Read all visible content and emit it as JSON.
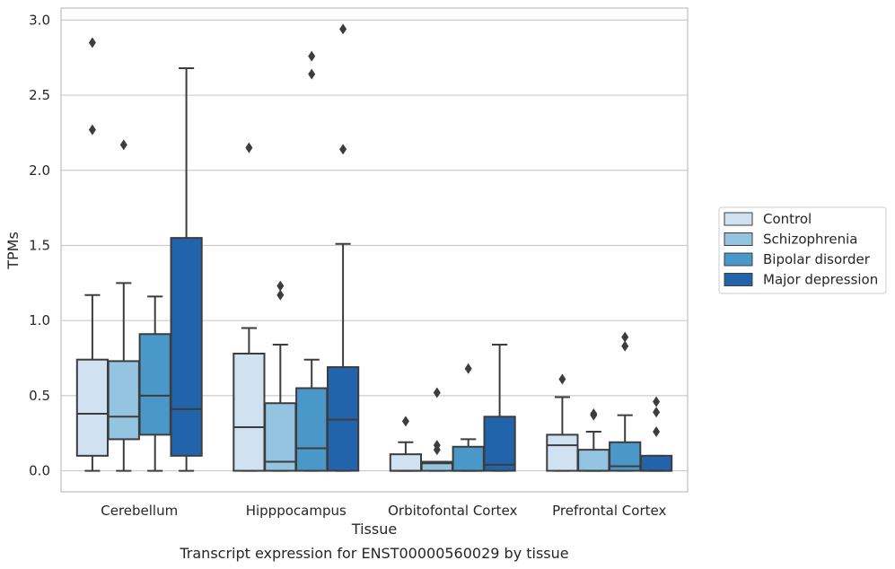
{
  "chart_data": {
    "type": "box",
    "title": "",
    "xlabel": "Tissue",
    "ylabel": "TPMs",
    "caption": "Transcript expression for ENST00000560029 by tissue",
    "ylim": [
      -0.14,
      3.08
    ],
    "yticks": [
      0.0,
      0.5,
      1.0,
      1.5,
      2.0,
      2.5,
      3.0
    ],
    "ytick_labels": [
      "0.0",
      "0.5",
      "1.0",
      "1.5",
      "2.0",
      "2.5",
      "3.0"
    ],
    "grid": "horizontal",
    "legend_position": "right",
    "categories": [
      "Cerebellum",
      "Hipppocampus",
      "Orbitofontal Cortex",
      "Prefrontal Cortex"
    ],
    "series": [
      {
        "name": "Control",
        "color": "#d0e1f2",
        "boxes": [
          {
            "whislo": 0.0,
            "q1": 0.1,
            "med": 0.38,
            "q3": 0.74,
            "whishi": 1.17,
            "fliers": [
              2.27,
              2.85
            ]
          },
          {
            "whislo": 0.0,
            "q1": 0.0,
            "med": 0.29,
            "q3": 0.78,
            "whishi": 0.95,
            "fliers": [
              2.15
            ]
          },
          {
            "whislo": 0.0,
            "q1": 0.0,
            "med": 0.0,
            "q3": 0.11,
            "whishi": 0.19,
            "fliers": [
              0.33
            ]
          },
          {
            "whislo": 0.0,
            "q1": 0.0,
            "med": 0.17,
            "q3": 0.24,
            "whishi": 0.49,
            "fliers": [
              0.61
            ]
          }
        ]
      },
      {
        "name": "Schizophrenia",
        "color": "#94c4df",
        "boxes": [
          {
            "whislo": 0.0,
            "q1": 0.21,
            "med": 0.36,
            "q3": 0.73,
            "whishi": 1.25,
            "fliers": [
              2.17
            ]
          },
          {
            "whislo": 0.0,
            "q1": 0.0,
            "med": 0.06,
            "q3": 0.45,
            "whishi": 0.84,
            "fliers": [
              1.17,
              1.23
            ]
          },
          {
            "whislo": 0.0,
            "q1": 0.0,
            "med": 0.05,
            "q3": 0.06,
            "whishi": 0.06,
            "fliers": [
              0.14,
              0.17,
              0.52
            ]
          },
          {
            "whislo": 0.0,
            "q1": 0.0,
            "med": 0.0,
            "q3": 0.14,
            "whishi": 0.26,
            "fliers": [
              0.37,
              0.38
            ]
          }
        ]
      },
      {
        "name": "Bipolar disorder",
        "color": "#4a98c9",
        "boxes": [
          {
            "whislo": 0.0,
            "q1": 0.24,
            "med": 0.5,
            "q3": 0.91,
            "whishi": 1.16,
            "fliers": []
          },
          {
            "whislo": 0.0,
            "q1": 0.0,
            "med": 0.15,
            "q3": 0.55,
            "whishi": 0.74,
            "fliers": [
              2.64,
              2.76
            ]
          },
          {
            "whislo": 0.0,
            "q1": 0.0,
            "med": 0.0,
            "q3": 0.16,
            "whishi": 0.21,
            "fliers": [
              0.68
            ]
          },
          {
            "whislo": 0.0,
            "q1": 0.0,
            "med": 0.03,
            "q3": 0.19,
            "whishi": 0.37,
            "fliers": [
              0.83,
              0.89
            ]
          }
        ]
      },
      {
        "name": "Major depression",
        "color": "#2164ab",
        "boxes": [
          {
            "whislo": 0.0,
            "q1": 0.1,
            "med": 0.41,
            "q3": 1.55,
            "whishi": 2.68,
            "fliers": []
          },
          {
            "whislo": 0.0,
            "q1": 0.0,
            "med": 0.34,
            "q3": 0.69,
            "whishi": 1.51,
            "fliers": [
              2.14,
              2.94
            ]
          },
          {
            "whislo": 0.0,
            "q1": 0.0,
            "med": 0.04,
            "q3": 0.36,
            "whishi": 0.84,
            "fliers": []
          },
          {
            "whislo": 0.0,
            "q1": 0.0,
            "med": 0.0,
            "q3": 0.1,
            "whishi": 0.1,
            "fliers": [
              0.26,
              0.39,
              0.46
            ]
          }
        ]
      }
    ]
  }
}
